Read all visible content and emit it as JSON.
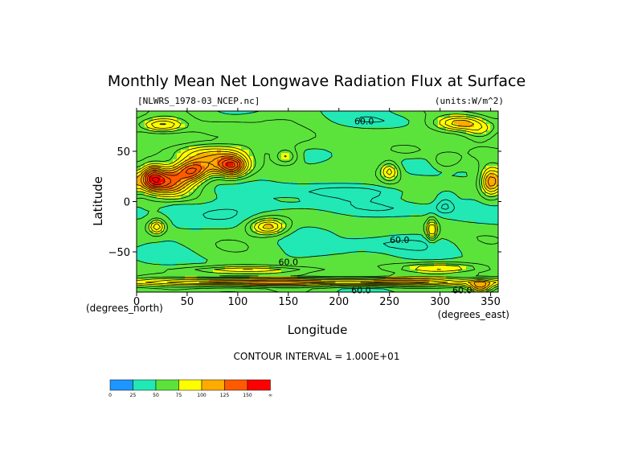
{
  "chart_data": {
    "type": "heatmap",
    "title": "Monthly Mean Net Longwave Radiation Flux at Surface",
    "subtitle_left": "[NLWRS_1978-03_NCEP.nc]",
    "subtitle_right": "(units:W/m^2)",
    "xlabel": "Longitude",
    "ylabel": "Latitude",
    "x_unit_label": "(degrees_east)",
    "y_unit_label": "(degrees_north)",
    "xlim": [
      0,
      357.5
    ],
    "ylim": [
      -90,
      90
    ],
    "x_ticks": [
      0,
      50,
      100,
      150,
      200,
      250,
      300,
      350
    ],
    "y_ticks": [
      50,
      0,
      -50
    ],
    "y_tick_labels": [
      "50",
      "0",
      "−50"
    ],
    "contour_info": "CONTOUR INTERVAL = 1.000E+01",
    "contour_labels": [
      {
        "text": "60.0",
        "lon": 225,
        "lat": 80
      },
      {
        "text": "60.0",
        "lon": 260,
        "lat": -38
      },
      {
        "text": "60.0",
        "lon": 150,
        "lat": -60
      },
      {
        "text": "60.0",
        "lon": 222,
        "lat": -88
      },
      {
        "text": "60.0",
        "lon": 322,
        "lat": -88
      }
    ],
    "colorbar": {
      "colors": [
        "#1e96ff",
        "#21e8b4",
        "#5be33c",
        "#ffff00",
        "#ffab00",
        "#ff5a00",
        "#ff0000"
      ],
      "labels": [
        "0",
        "25",
        "50",
        "75",
        "100",
        "125",
        "150",
        "∞"
      ]
    },
    "regions": [
      {
        "lon": 30,
        "lat": 20,
        "w": 24,
        "h": 14,
        "value": 135
      },
      {
        "lon": 15,
        "lat": 25,
        "w": 12,
        "h": 12,
        "value": 110
      },
      {
        "lon": 55,
        "lat": 30,
        "w": 16,
        "h": 10,
        "value": 115
      },
      {
        "lon": 75,
        "lat": 38,
        "w": 30,
        "h": 11,
        "value": 95
      },
      {
        "lon": 95,
        "lat": 35,
        "w": 14,
        "h": 10,
        "value": 120
      },
      {
        "lon": 70,
        "lat": 50,
        "w": 40,
        "h": 9,
        "value": 80
      },
      {
        "lon": 148,
        "lat": 45,
        "w": 12,
        "h": 8,
        "value": 85
      },
      {
        "lon": 140,
        "lat": 60,
        "w": 40,
        "h": 10,
        "value": 70
      },
      {
        "lon": 25,
        "lat": 76,
        "w": 22,
        "h": 7,
        "value": 100
      },
      {
        "lon": 85,
        "lat": 72,
        "w": 35,
        "h": 8,
        "value": 70
      },
      {
        "lon": 320,
        "lat": 78,
        "w": 25,
        "h": 8,
        "value": 110
      },
      {
        "lon": 340,
        "lat": 70,
        "w": 15,
        "h": 8,
        "value": 80
      },
      {
        "lon": 250,
        "lat": 30,
        "w": 9,
        "h": 9,
        "value": 95
      },
      {
        "lon": 305,
        "lat": 40,
        "w": 14,
        "h": 8,
        "value": 72
      },
      {
        "lon": 350,
        "lat": 20,
        "w": 10,
        "h": 14,
        "value": 115
      },
      {
        "lon": 270,
        "lat": 50,
        "w": 25,
        "h": 8,
        "value": 65
      },
      {
        "lon": 130,
        "lat": -25,
        "w": 18,
        "h": 8,
        "value": 110
      },
      {
        "lon": 20,
        "lat": -25,
        "w": 8,
        "h": 7,
        "value": 100
      },
      {
        "lon": 292,
        "lat": -28,
        "w": 5,
        "h": 10,
        "value": 105
      },
      {
        "lon": 305,
        "lat": 5,
        "w": 12,
        "h": 8,
        "value": 42
      },
      {
        "lon": 305,
        "lat": -5,
        "w": 8,
        "h": 6,
        "value": 32
      },
      {
        "lon": 200,
        "lat": 10,
        "w": 70,
        "h": 6,
        "value": 38
      },
      {
        "lon": 150,
        "lat": -5,
        "w": 45,
        "h": 7,
        "value": 40
      },
      {
        "lon": 80,
        "lat": -12,
        "w": 40,
        "h": 10,
        "value": 42
      },
      {
        "lon": 260,
        "lat": -8,
        "w": 50,
        "h": 7,
        "value": 42
      },
      {
        "lon": 20,
        "lat": 5,
        "w": 20,
        "h": 7,
        "value": 42
      },
      {
        "lon": 40,
        "lat": -5,
        "w": 20,
        "h": 6,
        "value": 40
      },
      {
        "lon": 250,
        "lat": -42,
        "w": 50,
        "h": 6,
        "value": 42
      },
      {
        "lon": 200,
        "lat": -50,
        "w": 40,
        "h": 6,
        "value": 44
      },
      {
        "lon": 240,
        "lat": 80,
        "w": 30,
        "h": 5,
        "value": 45
      },
      {
        "lon": 120,
        "lat": 82,
        "w": 30,
        "h": 4,
        "value": 55
      },
      {
        "lon": 100,
        "lat": -80,
        "w": 90,
        "h": 4,
        "value": 115
      },
      {
        "lon": 250,
        "lat": -80,
        "w": 90,
        "h": 4,
        "value": 115
      },
      {
        "lon": 340,
        "lat": -85,
        "w": 12,
        "h": 6,
        "value": 110
      },
      {
        "lon": 110,
        "lat": -68,
        "w": 60,
        "h": 4,
        "value": 95
      },
      {
        "lon": 300,
        "lat": -66,
        "w": 40,
        "h": 5,
        "value": 90
      }
    ]
  }
}
